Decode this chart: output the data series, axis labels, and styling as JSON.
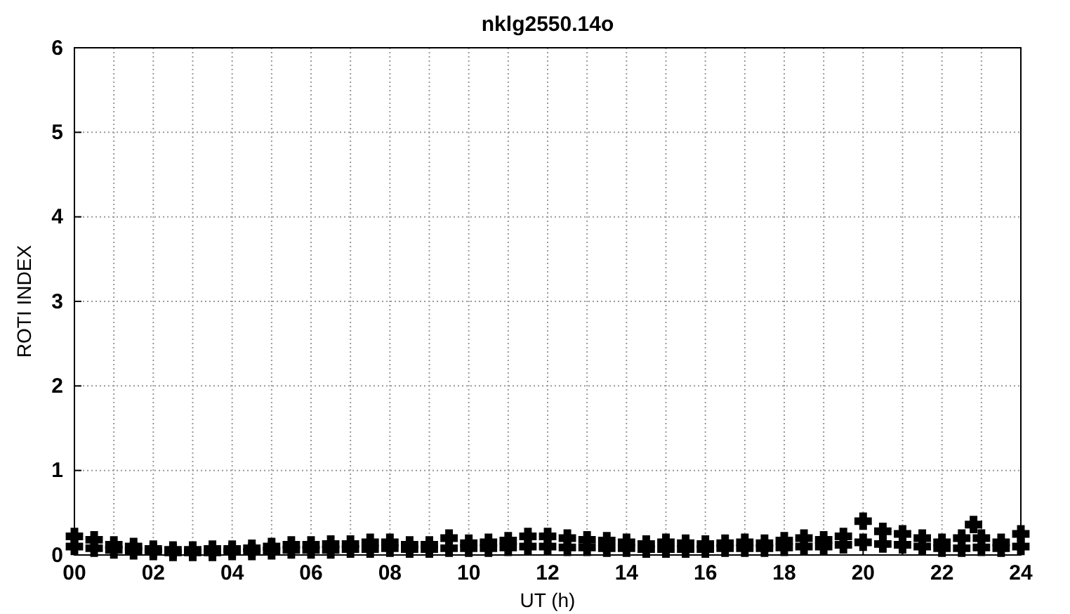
{
  "chart_data": {
    "type": "scatter",
    "title": "nklg2550.14o",
    "xlabel": "UT (h)",
    "ylabel": "ROTI INDEX",
    "xlim": [
      0,
      24
    ],
    "ylim": [
      0,
      6
    ],
    "xticks": [
      {
        "value": 0,
        "label": "00"
      },
      {
        "value": 1,
        "label": null
      },
      {
        "value": 2,
        "label": "02"
      },
      {
        "value": 3,
        "label": null
      },
      {
        "value": 4,
        "label": "04"
      },
      {
        "value": 5,
        "label": null
      },
      {
        "value": 6,
        "label": "06"
      },
      {
        "value": 7,
        "label": null
      },
      {
        "value": 8,
        "label": "08"
      },
      {
        "value": 9,
        "label": null
      },
      {
        "value": 10,
        "label": "10"
      },
      {
        "value": 11,
        "label": null
      },
      {
        "value": 12,
        "label": "12"
      },
      {
        "value": 13,
        "label": null
      },
      {
        "value": 14,
        "label": "14"
      },
      {
        "value": 15,
        "label": null
      },
      {
        "value": 16,
        "label": "16"
      },
      {
        "value": 17,
        "label": null
      },
      {
        "value": 18,
        "label": "18"
      },
      {
        "value": 19,
        "label": null
      },
      {
        "value": 20,
        "label": "20"
      },
      {
        "value": 21,
        "label": null
      },
      {
        "value": 22,
        "label": "22"
      },
      {
        "value": 23,
        "label": null
      },
      {
        "value": 24,
        "label": "24"
      }
    ],
    "yticks": [
      0,
      1,
      2,
      3,
      4,
      5,
      6
    ],
    "grid": true,
    "marker": "cross",
    "series": [
      {
        "color": "#000000",
        "x": [
          0,
          0.5,
          1,
          1.5,
          2,
          2.5,
          3,
          3.5,
          4,
          4.5,
          5,
          5.5,
          6,
          6.5,
          7,
          7.5,
          8,
          8.5,
          9,
          9.5,
          10,
          10.5,
          11,
          11.5,
          12,
          12.5,
          13,
          13.5,
          14,
          14.5,
          15,
          15.5,
          16,
          16.5,
          17,
          17.5,
          18,
          18.5,
          19,
          19.5,
          20,
          20.5,
          21,
          21.5,
          22,
          22.5,
          22.8,
          23,
          23.5,
          24,
          0,
          0.5,
          1,
          1.5,
          2,
          2.5,
          3,
          3.5,
          4,
          4.5,
          5,
          5.5,
          6,
          6.5,
          7,
          7.5,
          8,
          8.5,
          9,
          9.5,
          10,
          10.5,
          11,
          11.5,
          12,
          12.5,
          13,
          13.5,
          14,
          14.5,
          15,
          15.5,
          16,
          16.5,
          17,
          17.5,
          18,
          18.5,
          19,
          19.5,
          20,
          20.5,
          21,
          21.5,
          22,
          22.5,
          23,
          23.5,
          24
        ],
        "values": [
          0.22,
          0.18,
          0.12,
          0.1,
          0.07,
          0.06,
          0.06,
          0.07,
          0.07,
          0.08,
          0.1,
          0.12,
          0.12,
          0.13,
          0.13,
          0.15,
          0.15,
          0.12,
          0.12,
          0.2,
          0.14,
          0.15,
          0.17,
          0.22,
          0.22,
          0.2,
          0.18,
          0.17,
          0.15,
          0.13,
          0.15,
          0.14,
          0.13,
          0.14,
          0.15,
          0.14,
          0.17,
          0.2,
          0.18,
          0.22,
          0.4,
          0.28,
          0.25,
          0.2,
          0.15,
          0.2,
          0.36,
          0.2,
          0.15,
          0.25,
          0.1,
          0.08,
          0.06,
          0.05,
          0.04,
          0.03,
          0.03,
          0.03,
          0.04,
          0.04,
          0.05,
          0.06,
          0.06,
          0.06,
          0.07,
          0.07,
          0.08,
          0.07,
          0.07,
          0.08,
          0.08,
          0.08,
          0.09,
          0.1,
          0.1,
          0.09,
          0.09,
          0.08,
          0.08,
          0.07,
          0.07,
          0.07,
          0.07,
          0.08,
          0.08,
          0.08,
          0.09,
          0.1,
          0.1,
          0.12,
          0.15,
          0.13,
          0.12,
          0.1,
          0.08,
          0.08,
          0.09,
          0.08,
          0.1
        ]
      }
    ]
  }
}
